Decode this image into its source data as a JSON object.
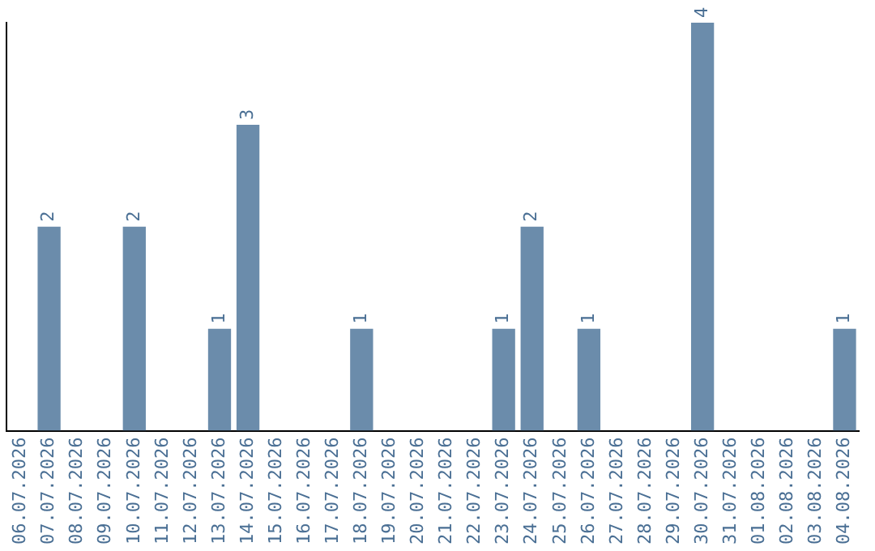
{
  "chart_data": {
    "type": "bar",
    "categories": [
      "06.07.2026",
      "07.07.2026",
      "08.07.2026",
      "09.07.2026",
      "10.07.2026",
      "11.07.2026",
      "12.07.2026",
      "13.07.2026",
      "14.07.2026",
      "15.07.2026",
      "16.07.2026",
      "17.07.2026",
      "18.07.2026",
      "19.07.2026",
      "20.07.2026",
      "21.07.2026",
      "22.07.2026",
      "23.07.2026",
      "24.07.2026",
      "25.07.2026",
      "26.07.2026",
      "27.07.2026",
      "28.07.2026",
      "29.07.2026",
      "30.07.2026",
      "31.07.2026",
      "01.08.2026",
      "02.08.2026",
      "03.08.2026",
      "04.08.2026"
    ],
    "values": [
      0,
      2,
      0,
      0,
      2,
      0,
      0,
      1,
      3,
      0,
      0,
      0,
      1,
      0,
      0,
      0,
      0,
      1,
      2,
      0,
      1,
      0,
      0,
      0,
      4,
      0,
      0,
      0,
      0,
      1
    ],
    "value_labels": [
      null,
      "2",
      null,
      null,
      "2",
      null,
      null,
      "1",
      "3",
      null,
      null,
      null,
      "1",
      null,
      null,
      null,
      null,
      "1",
      "2",
      null,
      "1",
      null,
      null,
      null,
      "4",
      null,
      null,
      null,
      null,
      "1"
    ],
    "color": "#6b8cab",
    "tick_labels": "x",
    "grid": false,
    "legend": false
  }
}
